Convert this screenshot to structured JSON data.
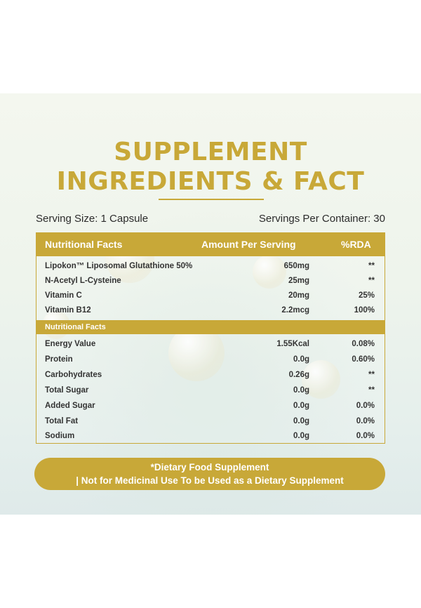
{
  "title": {
    "line1": "SUPPLEMENT",
    "line2": "INGREDIENTS & FACT"
  },
  "serving": {
    "size": "Serving Size: 1 Capsule",
    "per_container": "Servings Per Container: 30"
  },
  "table": {
    "header": {
      "col1": "Nutritional Facts",
      "col2": "Amount Per Serving",
      "col3": "%RDA"
    },
    "ingredients": [
      {
        "name": "Lipokon™ Liposomal Glutathione 50%",
        "amount": "650mg",
        "rda": "**"
      },
      {
        "name": "N-Acetyl L-Cysteine",
        "amount": "25mg",
        "rda": "**"
      },
      {
        "name": "Vitamin C",
        "amount": "20mg",
        "rda": "25%"
      },
      {
        "name": "Vitamin B12",
        "amount": "2.2mcg",
        "rda": "100%"
      }
    ],
    "subheader": "Nutritional Facts",
    "nutrition": [
      {
        "name": "Energy Value",
        "amount": "1.55Kcal",
        "rda": "0.08%"
      },
      {
        "name": "Protein",
        "amount": "0.0g",
        "rda": "0.60%"
      },
      {
        "name": "Carbohydrates",
        "amount": "0.26g",
        "rda": "**"
      },
      {
        "name": "Total Sugar",
        "amount": "0.0g",
        "rda": "**"
      },
      {
        "name": "Added Sugar",
        "amount": "0.0g",
        "rda": "0.0%"
      },
      {
        "name": "Total Fat",
        "amount": "0.0g",
        "rda": "0.0%"
      },
      {
        "name": "Sodium",
        "amount": "0.0g",
        "rda": "0.0%"
      }
    ]
  },
  "footer": {
    "line1": "*Dietary Food Supplement",
    "line2": "| Not for Medicinal Use To be Used as a Dietary Supplement"
  },
  "colors": {
    "accent": "#c8a838",
    "background": "#eef4ec",
    "text": "#2b2b2b"
  }
}
